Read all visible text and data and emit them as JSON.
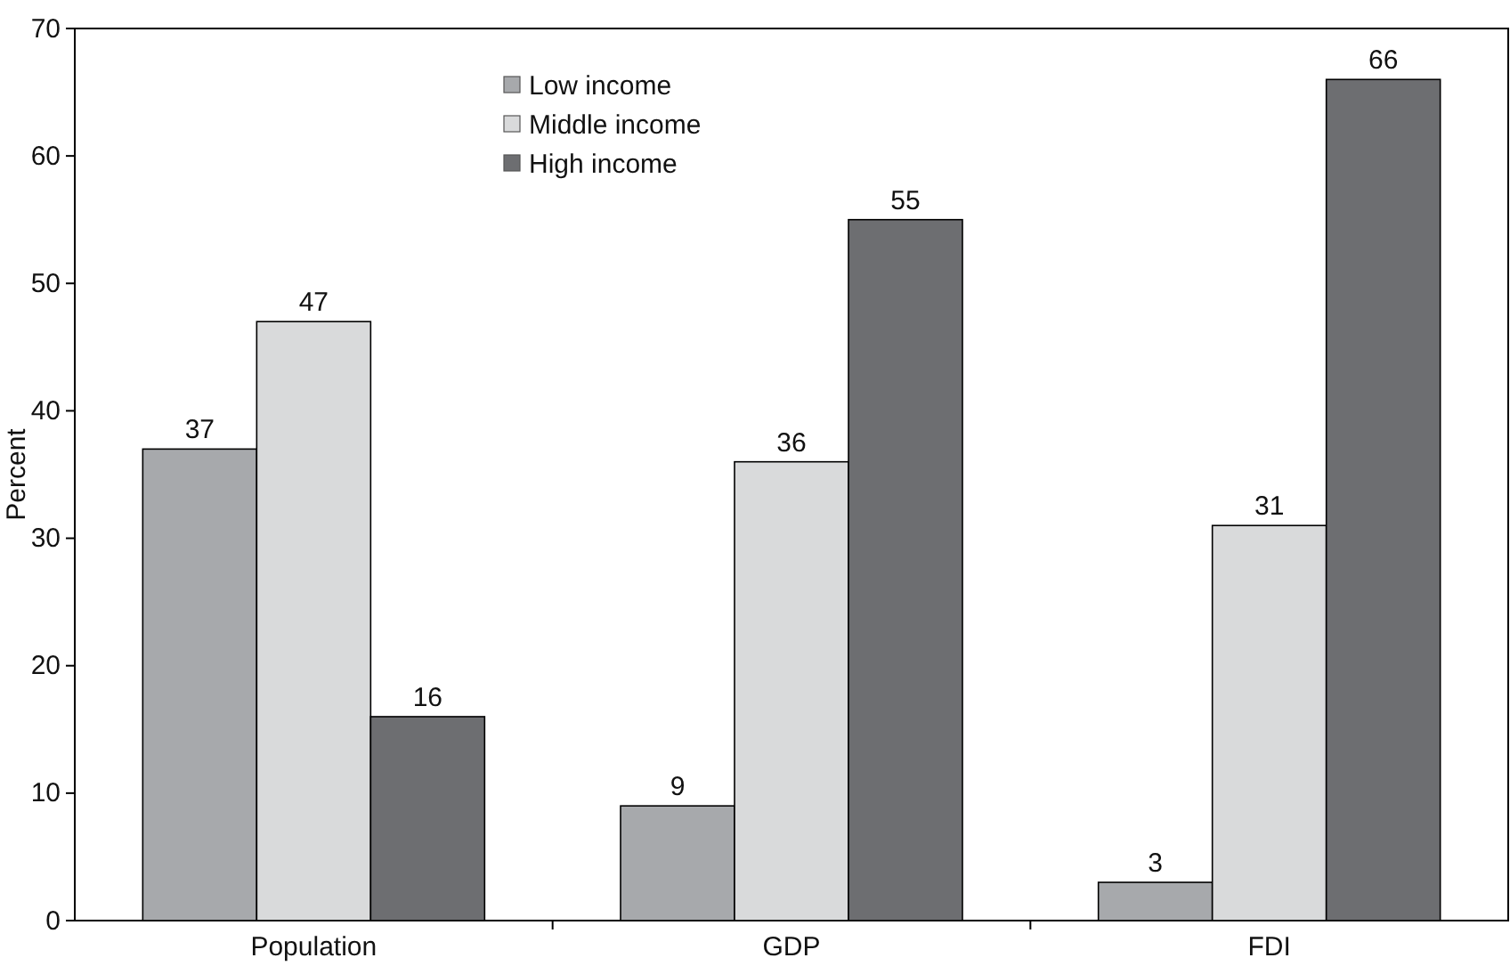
{
  "chart_data": {
    "type": "bar",
    "ylabel": "Percent",
    "categories": [
      "Population",
      "GDP",
      "FDI"
    ],
    "series": [
      {
        "name": "Low income",
        "color": "#a7a9ac",
        "values": [
          37,
          9,
          3
        ]
      },
      {
        "name": "Middle income",
        "color": "#d9dadb",
        "values": [
          47,
          36,
          31
        ]
      },
      {
        "name": "High income",
        "color": "#6d6e71",
        "values": [
          16,
          55,
          66
        ]
      }
    ],
    "ylim": [
      0,
      70
    ],
    "yticks": [
      0,
      10,
      20,
      30,
      40,
      50,
      60,
      70
    ],
    "data_labels": true,
    "legend": "top",
    "grid": false
  }
}
